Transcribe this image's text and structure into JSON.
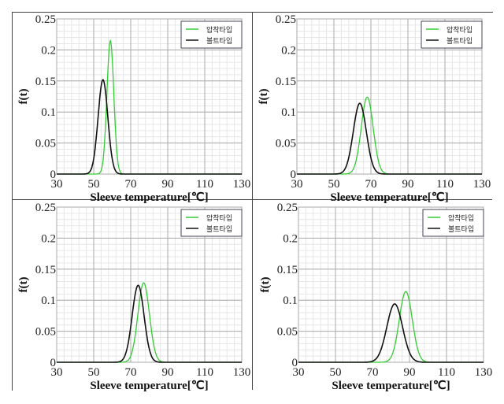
{
  "chart_data": [
    {
      "type": "line",
      "xlabel": "Sleeve temperature[℃]",
      "ylabel": "f(t)",
      "xlim": [
        30,
        130
      ],
      "ylim": [
        0,
        0.25
      ],
      "xticks": [
        "30",
        "50",
        "70",
        "90",
        "110",
        "130"
      ],
      "yticks": [
        "0",
        "0.05",
        "0.1",
        "0.15",
        "0.2",
        "0.25"
      ],
      "grid": true,
      "legend": "top-right",
      "series": [
        {
          "name": "압착타입",
          "color": "#33cc33",
          "mean": 59,
          "peak": 0.215
        },
        {
          "name": "볼트타입",
          "color": "#111111",
          "mean": 55,
          "peak": 0.152
        }
      ]
    },
    {
      "type": "line",
      "xlabel": "Sleeve temperature[℃]",
      "ylabel": "f(t)",
      "xlim": [
        30,
        130
      ],
      "ylim": [
        0,
        0.25
      ],
      "xticks": [
        "30",
        "50",
        "70",
        "90",
        "110",
        "130"
      ],
      "yticks": [
        "0",
        "0.05",
        "0.1",
        "0.15",
        "0.2",
        "0.25"
      ],
      "grid": true,
      "legend": "top-right",
      "series": [
        {
          "name": "압착타입",
          "color": "#33cc33",
          "mean": 68,
          "peak": 0.124
        },
        {
          "name": "볼트타입",
          "color": "#111111",
          "mean": 64,
          "peak": 0.114
        }
      ]
    },
    {
      "type": "line",
      "xlabel": "Sleeve temperature[℃]",
      "ylabel": "f(t)",
      "xlim": [
        30,
        130
      ],
      "ylim": [
        0,
        0.25
      ],
      "xticks": [
        "30",
        "50",
        "70",
        "90",
        "110",
        "130"
      ],
      "yticks": [
        "0",
        "0.05",
        "0.1",
        "0.15",
        "0.2",
        "0.25"
      ],
      "grid": true,
      "legend": "top-right",
      "series": [
        {
          "name": "압착타입",
          "color": "#33cc33",
          "mean": 77,
          "peak": 0.128
        },
        {
          "name": "볼트타입",
          "color": "#111111",
          "mean": 74,
          "peak": 0.124
        }
      ]
    },
    {
      "type": "line",
      "xlabel": "Sleeve temperature[℃]",
      "ylabel": "f(t)",
      "xlim": [
        30,
        130
      ],
      "ylim": [
        0,
        0.25
      ],
      "xticks": [
        "30",
        "50",
        "70",
        "90",
        "110",
        "130"
      ],
      "yticks": [
        "0",
        "0.05",
        "0.1",
        "0.15",
        "0.2",
        "0.25"
      ],
      "grid": true,
      "legend": "top-right",
      "series": [
        {
          "name": "압착타입",
          "color": "#33cc33",
          "mean": 88,
          "peak": 0.114
        },
        {
          "name": "볼트타입",
          "color": "#111111",
          "mean": 82,
          "peak": 0.094
        }
      ]
    }
  ]
}
